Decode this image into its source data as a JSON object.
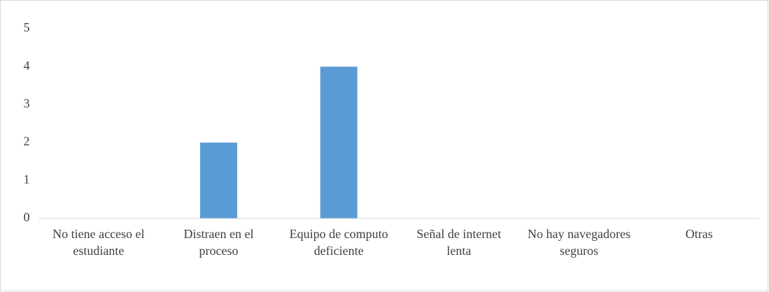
{
  "chart_data": {
    "type": "bar",
    "categories": [
      "No tiene acceso el estudiante",
      "Distraen en el proceso",
      "Equipo de computo deficiente",
      "Señal de internet lenta",
      "No hay navegadores seguros",
      "Otras"
    ],
    "values": [
      0,
      2,
      4,
      0,
      0,
      0
    ],
    "color": "#5b9bd5",
    "ylim": [
      0,
      5
    ],
    "yticks": [
      0,
      1,
      2,
      3,
      4,
      5
    ],
    "grid": false
  }
}
